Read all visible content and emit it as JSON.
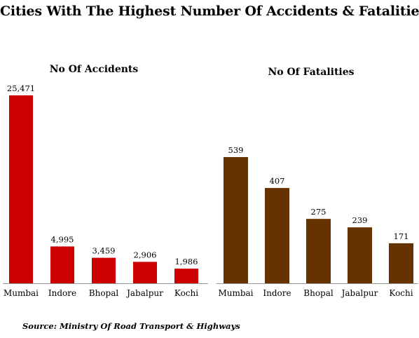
{
  "title": "Cities With The Highest Number Of Accidents & Fatalities",
  "source": "Source:  Ministry Of Road Transport  & Highways",
  "colors": {
    "accidents": "#cc0000",
    "fatalities": "#663300",
    "axis": "#999999"
  },
  "chart_data": [
    {
      "type": "bar",
      "title": "No Of Accidents",
      "categories": [
        "Mumbai",
        "Indore",
        "Bhopal",
        "Jabalpur",
        "Kochi"
      ],
      "values": [
        25471,
        4995,
        3459,
        2906,
        1986
      ],
      "value_labels": [
        "25,471",
        "4,995",
        "3,459",
        "2,906",
        "1,986"
      ],
      "grid": false,
      "legend": "none"
    },
    {
      "type": "bar",
      "title": "No Of Fatalities",
      "categories": [
        "Mumbai",
        "Indore",
        "Bhopal",
        "Jabalpur",
        "Kochi"
      ],
      "values": [
        539,
        407,
        275,
        239,
        171
      ],
      "value_labels": [
        "539",
        "407",
        "275",
        "239",
        "171"
      ],
      "grid": false,
      "legend": "none"
    }
  ]
}
